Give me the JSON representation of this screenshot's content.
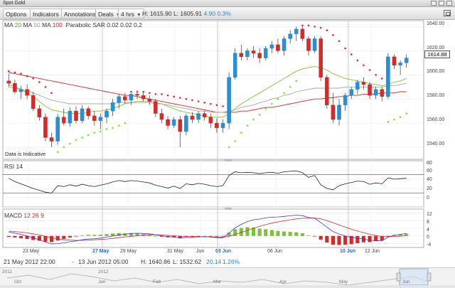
{
  "window": {
    "title": "Spot Gold"
  },
  "toolbar": {
    "options_label": "Options",
    "indicators_label": "Indicators",
    "annotations_label": "Annotations",
    "deals_label": "Deals",
    "interval_label": "4 hrs",
    "high": "H: 1615.90",
    "low": "L: 1605.91",
    "change": "4.90",
    "change_pct": "0.3%"
  },
  "main_legend": {
    "ma1": "MA",
    "ma1_val": "20",
    "ma2": "MA",
    "ma2_val": "50",
    "ma3": "MA",
    "ma3_val": "100",
    "sar_label": "Parabolic SAR",
    "sar_vals": "0.02  0.02  0.2"
  },
  "rsi_legend": {
    "label": "RSI",
    "period": "14"
  },
  "macd_legend": {
    "label": "MACD",
    "fast": "12",
    "slow": "26",
    "signal": "9"
  },
  "price_axis": [
    "1640.00",
    "1620.00",
    "1600.00",
    "1580.00",
    "1560.00",
    "1540.00"
  ],
  "rsi_axis": [
    "80",
    "60",
    "40",
    "20",
    "0"
  ],
  "macd_axis": [
    "12",
    "8",
    "4",
    "0",
    "-4"
  ],
  "current_price": "1614.88",
  "indicative_note": "Data is Indicative",
  "x_axis": [
    {
      "label": "23 May",
      "highlight": false
    },
    {
      "label": "27 May",
      "highlight": true
    },
    {
      "label": "29 May",
      "highlight": false
    },
    {
      "label": "31 May",
      "highlight": false
    },
    {
      "label": "Jun",
      "highlight": false
    },
    {
      "label": "03 Jun",
      "highlight": true
    },
    {
      "label": "06 Jun",
      "highlight": false
    },
    {
      "label": "10 Jun",
      "highlight": true
    },
    {
      "label": "12 Jun",
      "highlight": false
    }
  ],
  "range_bar": {
    "start": "21 May 2012 22:00",
    "separator": "-",
    "end": "13 Jun 2012 05:00",
    "high": "H: 1640.86",
    "low": "L: 1532.62",
    "change": "20.14",
    "change_pct": "1.26%"
  },
  "navigator": {
    "labels": [
      "2011",
      "2012",
      "Oct",
      "Jan",
      "Feb",
      "Mar",
      "Apr",
      "May",
      "Jun"
    ]
  },
  "colors": {
    "up": "#2a8fd0",
    "down": "#d42a2a",
    "ma20": "#7cc23a",
    "ma50": "#a8a8a8",
    "ma100": "#d02a2a",
    "sar_up": "#7ee02a",
    "sar_down": "#e02a2a",
    "rsi": "#222222",
    "rsi_upper": "#4a6fb0",
    "rsi_lower": "#d04a4a",
    "macd": "#3a3ad0",
    "macd_signal": "#d02a2a",
    "hist_pos": "#7cc23a",
    "hist_neg": "#d42a2a"
  },
  "chart_data": [
    {
      "type": "candlestick",
      "title": "Spot Gold",
      "interval": "4 hrs",
      "ylim": [
        1530,
        1645
      ],
      "y_ticks": [
        1540,
        1560,
        1580,
        1600,
        1620,
        1640
      ],
      "ohlc": [
        [
          1595,
          1601,
          1590,
          1593
        ],
        [
          1593,
          1596,
          1584,
          1586
        ],
        [
          1586,
          1591,
          1580,
          1588
        ],
        [
          1588,
          1592,
          1580,
          1583
        ],
        [
          1583,
          1586,
          1570,
          1572
        ],
        [
          1572,
          1575,
          1562,
          1565
        ],
        [
          1565,
          1568,
          1545,
          1548
        ],
        [
          1548,
          1552,
          1540,
          1545
        ],
        [
          1545,
          1568,
          1542,
          1565
        ],
        [
          1565,
          1572,
          1558,
          1560
        ],
        [
          1560,
          1573,
          1557,
          1570
        ],
        [
          1570,
          1574,
          1560,
          1562
        ],
        [
          1562,
          1575,
          1560,
          1572
        ],
        [
          1572,
          1574,
          1563,
          1566
        ],
        [
          1566,
          1570,
          1558,
          1562
        ],
        [
          1562,
          1568,
          1555,
          1565
        ],
        [
          1565,
          1572,
          1560,
          1570
        ],
        [
          1570,
          1580,
          1566,
          1577
        ],
        [
          1577,
          1584,
          1572,
          1582
        ],
        [
          1582,
          1585,
          1576,
          1579
        ],
        [
          1579,
          1585,
          1575,
          1584
        ],
        [
          1584,
          1587,
          1580,
          1583
        ],
        [
          1583,
          1586,
          1578,
          1580
        ],
        [
          1580,
          1583,
          1575,
          1578
        ],
        [
          1578,
          1580,
          1565,
          1568
        ],
        [
          1568,
          1572,
          1560,
          1563
        ],
        [
          1563,
          1566,
          1555,
          1558
        ],
        [
          1558,
          1565,
          1556,
          1563
        ],
        [
          1563,
          1566,
          1540,
          1553
        ],
        [
          1553,
          1568,
          1550,
          1566
        ],
        [
          1566,
          1569,
          1560,
          1563
        ],
        [
          1563,
          1570,
          1560,
          1568
        ],
        [
          1568,
          1570,
          1562,
          1565
        ],
        [
          1565,
          1568,
          1556,
          1560
        ],
        [
          1560,
          1564,
          1552,
          1556
        ],
        [
          1556,
          1563,
          1552,
          1560
        ],
        [
          1560,
          1602,
          1555,
          1598
        ],
        [
          1598,
          1622,
          1596,
          1618
        ],
        [
          1618,
          1625,
          1612,
          1615
        ],
        [
          1615,
          1622,
          1612,
          1620
        ],
        [
          1620,
          1624,
          1614,
          1618
        ],
        [
          1618,
          1622,
          1610,
          1614
        ],
        [
          1614,
          1624,
          1612,
          1622
        ],
        [
          1622,
          1628,
          1618,
          1625
        ],
        [
          1625,
          1630,
          1618,
          1620
        ],
        [
          1620,
          1632,
          1616,
          1630
        ],
        [
          1630,
          1637,
          1626,
          1634
        ],
        [
          1634,
          1640,
          1628,
          1638
        ],
        [
          1638,
          1640,
          1628,
          1630
        ],
        [
          1630,
          1632,
          1616,
          1620
        ],
        [
          1620,
          1632,
          1618,
          1630
        ],
        [
          1630,
          1632,
          1595,
          1598
        ],
        [
          1598,
          1600,
          1572,
          1575
        ],
        [
          1575,
          1585,
          1560,
          1563
        ],
        [
          1563,
          1580,
          1558,
          1575
        ],
        [
          1575,
          1585,
          1570,
          1583
        ],
        [
          1583,
          1590,
          1580,
          1588
        ],
        [
          1588,
          1596,
          1584,
          1594
        ],
        [
          1594,
          1598,
          1588,
          1592
        ],
        [
          1592,
          1594,
          1580,
          1583
        ],
        [
          1583,
          1590,
          1580,
          1588
        ],
        [
          1588,
          1590,
          1578,
          1582
        ],
        [
          1582,
          1618,
          1580,
          1615
        ],
        [
          1615,
          1617,
          1605,
          1608
        ],
        [
          1608,
          1612,
          1600,
          1610
        ],
        [
          1610,
          1617,
          1606,
          1614
        ]
      ],
      "ma20": [
        1592,
        1590,
        1588,
        1585,
        1582,
        1578,
        1574,
        1571,
        1570,
        1569,
        1568,
        1568,
        1568,
        1569,
        1570,
        1570,
        1571,
        1572,
        1574,
        1576,
        1577,
        1578,
        1578,
        1578,
        1577,
        1576,
        1574,
        1572,
        1570,
        1569,
        1568,
        1567,
        1566,
        1565,
        1565,
        1565,
        1568,
        1572,
        1576,
        1579,
        1582,
        1585,
        1588,
        1591,
        1594,
        1597,
        1600,
        1603,
        1605,
        1606,
        1607,
        1606,
        1604,
        1601,
        1599,
        1597,
        1596,
        1595,
        1594,
        1593,
        1592,
        1591,
        1592,
        1594,
        1595,
        1597
      ],
      "ma50": [
        1590,
        1589,
        1588,
        1587,
        1585,
        1583,
        1581,
        1579,
        1578,
        1577,
        1576,
        1576,
        1576,
        1576,
        1576,
        1576,
        1576,
        1576,
        1577,
        1577,
        1577,
        1577,
        1577,
        1577,
        1576,
        1576,
        1575,
        1574,
        1573,
        1572,
        1571,
        1570,
        1570,
        1569,
        1569,
        1569,
        1570,
        1571,
        1573,
        1574,
        1575,
        1577,
        1578,
        1580,
        1581,
        1583,
        1584,
        1586,
        1587,
        1588,
        1589,
        1589,
        1589,
        1589,
        1589,
        1590,
        1590,
        1590,
        1590,
        1590,
        1590,
        1590,
        1591,
        1591,
        1592,
        1593
      ],
      "ma100": [
        1602,
        1601,
        1600,
        1599,
        1598,
        1597,
        1596,
        1595,
        1594,
        1593,
        1592,
        1591,
        1590,
        1589,
        1588,
        1587,
        1586,
        1585,
        1584,
        1583,
        1583,
        1582,
        1581,
        1580,
        1579,
        1578,
        1577,
        1576,
        1575,
        1574,
        1573,
        1572,
        1571,
        1570,
        1569,
        1569,
        1569,
        1569,
        1570,
        1570,
        1571,
        1572,
        1573,
        1573,
        1574,
        1575,
        1576,
        1577,
        1578,
        1579,
        1580,
        1580,
        1581,
        1581,
        1582,
        1582,
        1583,
        1583,
        1584,
        1584,
        1584,
        1585,
        1585,
        1585,
        1586,
        1586
      ],
      "sar": [
        1603,
        1602,
        1601,
        1599,
        1597,
        1594,
        1590,
        1585,
        1536,
        1540,
        1543,
        1546,
        1548,
        1550,
        1552,
        1553,
        1555,
        1556,
        1558,
        1560,
        1586,
        1586,
        1586,
        1585,
        1584,
        1584,
        1583,
        1582,
        1581,
        1580,
        1579,
        1578,
        1577,
        1576,
        1575,
        1574,
        1540,
        1545,
        1552,
        1558,
        1563,
        1567,
        1572,
        1576,
        1580,
        1585,
        1590,
        1595,
        1641,
        1641,
        1640,
        1639,
        1637,
        1633,
        1628,
        1622,
        1617,
        1612,
        1608,
        1604,
        1600,
        1597,
        1561,
        1563,
        1565,
        1568
      ]
    },
    {
      "type": "line",
      "title": "RSI",
      "period": 14,
      "ylim": [
        0,
        100
      ],
      "y_ticks": [
        0,
        20,
        40,
        60,
        80
      ],
      "levels": [
        70,
        30
      ],
      "values": [
        62,
        55,
        50,
        45,
        40,
        36,
        32,
        30,
        46,
        44,
        48,
        45,
        49,
        46,
        44,
        47,
        50,
        54,
        57,
        55,
        57,
        56,
        54,
        52,
        47,
        44,
        41,
        45,
        40,
        50,
        48,
        51,
        49,
        46,
        44,
        46,
        68,
        76,
        74,
        75,
        74,
        72,
        74,
        75,
        73,
        76,
        77,
        78,
        74,
        64,
        68,
        48,
        40,
        37,
        46,
        50,
        53,
        56,
        55,
        49,
        52,
        50,
        63,
        60,
        61,
        62
      ]
    },
    {
      "type": "bar+line",
      "title": "MACD",
      "params": [
        12,
        26,
        9
      ],
      "ylim": [
        -6,
        14
      ],
      "y_ticks": [
        -4,
        0,
        4,
        8,
        12
      ],
      "macd": [
        2,
        1.5,
        0.8,
        0,
        -1,
        -2,
        -3.2,
        -4.2,
        -4,
        -3.6,
        -3,
        -2.6,
        -2,
        -1.6,
        -1.4,
        -1.1,
        -0.6,
        0,
        0.6,
        0.9,
        1.3,
        1.4,
        1.3,
        1.1,
        0.6,
        0.1,
        -0.4,
        -0.6,
        -1.1,
        -0.8,
        -0.8,
        -0.5,
        -0.4,
        -0.6,
        -0.9,
        -1,
        1.5,
        4.2,
        6,
        7.5,
        8.4,
        8.8,
        9.4,
        9.8,
        9.9,
        10.2,
        10.5,
        10.8,
        10.6,
        9.6,
        9.2,
        7,
        4.6,
        2.3,
        1,
        0,
        -0.8,
        -1.2,
        -1.6,
        -2.3,
        -2.4,
        -2.6,
        -0.6,
        0.3,
        0.8,
        1.3
      ],
      "signal": [
        2.5,
        2.3,
        2,
        1.6,
        1.1,
        0.5,
        -0.2,
        -1,
        -1.6,
        -2,
        -2.2,
        -2.3,
        -2.3,
        -2.2,
        -2,
        -1.8,
        -1.6,
        -1.3,
        -0.9,
        -0.5,
        -0.2,
        0.1,
        0.4,
        0.6,
        0.6,
        0.5,
        0.3,
        0.1,
        -0.1,
        -0.3,
        -0.4,
        -0.4,
        -0.4,
        -0.5,
        -0.6,
        -0.7,
        -0.2,
        0.7,
        1.8,
        2.9,
        4,
        5,
        5.9,
        6.7,
        7.3,
        7.9,
        8.4,
        8.9,
        9.2,
        9.3,
        9.3,
        8.9,
        8,
        6.9,
        5.7,
        4.6,
        3.5,
        2.6,
        1.7,
        0.9,
        0.3,
        -0.3,
        -0.4,
        -0.3,
        -0.1,
        0.1
      ]
    }
  ]
}
